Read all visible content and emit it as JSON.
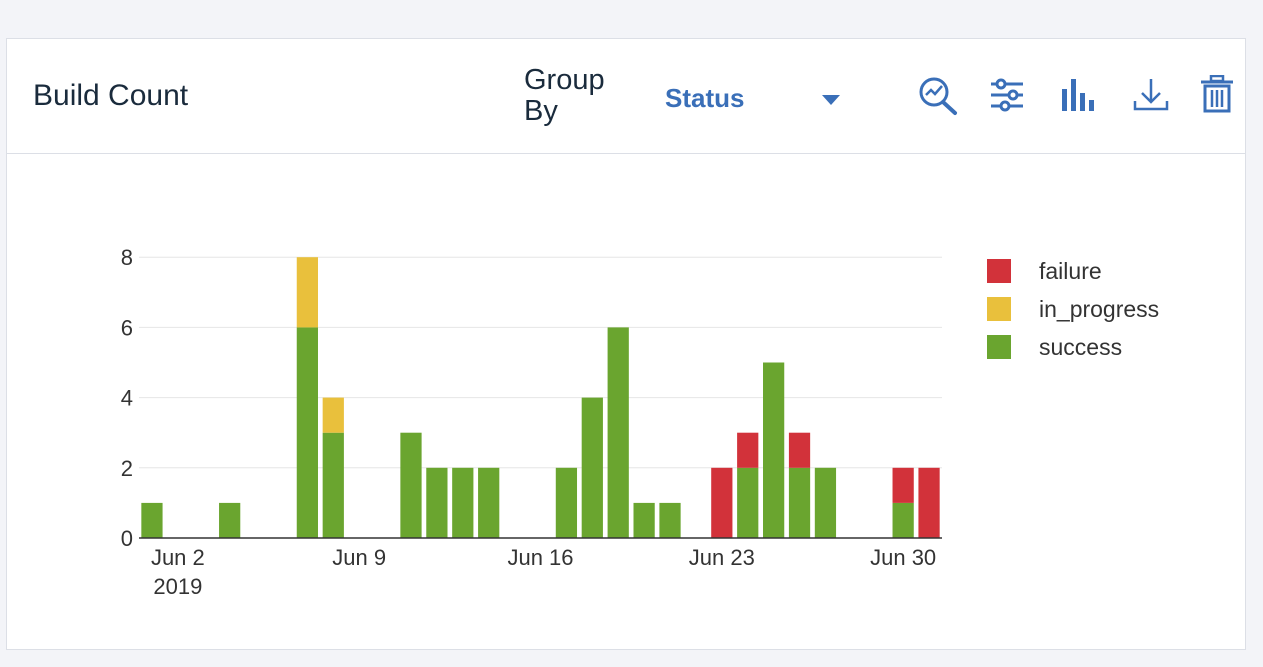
{
  "card": {
    "title": "Build Count",
    "group_by_label": "Group By",
    "group_by_value": "Status"
  },
  "toolbar": {
    "icons": [
      "zoom-chart-icon",
      "sliders-icon",
      "bar-chart-icon",
      "download-icon",
      "trash-icon"
    ]
  },
  "colors": {
    "failure": "#d2323a",
    "in_progress": "#e9c03c",
    "success": "#6aa52f",
    "accent": "#3a6fb8"
  },
  "chart_data": {
    "type": "bar",
    "stacked": true,
    "title": "",
    "xlabel": "",
    "ylabel": "",
    "ylim": [
      0,
      8.6
    ],
    "y_ticks": [
      0,
      2,
      4,
      6,
      8
    ],
    "x_tick_labels": [
      {
        "date": "2019-06-02",
        "label": "Jun 2",
        "sub": "2019"
      },
      {
        "date": "2019-06-09",
        "label": "Jun 9"
      },
      {
        "date": "2019-06-16",
        "label": "Jun 16"
      },
      {
        "date": "2019-06-23",
        "label": "Jun 23"
      },
      {
        "date": "2019-06-30",
        "label": "Jun 30"
      }
    ],
    "grid": true,
    "legend_position": "right",
    "categories": [
      "2019-06-01",
      "2019-06-02",
      "2019-06-03",
      "2019-06-04",
      "2019-06-05",
      "2019-06-06",
      "2019-06-07",
      "2019-06-08",
      "2019-06-09",
      "2019-06-10",
      "2019-06-11",
      "2019-06-12",
      "2019-06-13",
      "2019-06-14",
      "2019-06-15",
      "2019-06-16",
      "2019-06-17",
      "2019-06-18",
      "2019-06-19",
      "2019-06-20",
      "2019-06-21",
      "2019-06-22",
      "2019-06-23",
      "2019-06-24",
      "2019-06-25",
      "2019-06-26",
      "2019-06-27",
      "2019-06-28",
      "2019-06-29",
      "2019-06-30",
      "2019-07-01"
    ],
    "series": [
      {
        "name": "success",
        "color_key": "success",
        "values": [
          1,
          0,
          0,
          1,
          0,
          0,
          6,
          3,
          0,
          0,
          3,
          2,
          2,
          2,
          0,
          0,
          2,
          4,
          6,
          1,
          1,
          0,
          0,
          2,
          5,
          2,
          2,
          0,
          0,
          1,
          0
        ]
      },
      {
        "name": "in_progress",
        "color_key": "in_progress",
        "values": [
          0,
          0,
          0,
          0,
          0,
          0,
          2,
          1,
          0,
          0,
          0,
          0,
          0,
          0,
          0,
          0,
          0,
          0,
          0,
          0,
          0,
          0,
          0,
          0,
          0,
          0,
          0,
          0,
          0,
          0,
          0
        ]
      },
      {
        "name": "failure",
        "color_key": "failure",
        "values": [
          0,
          0,
          0,
          0,
          0,
          0,
          0,
          0,
          0,
          0,
          0,
          0,
          0,
          0,
          0,
          0,
          0,
          0,
          0,
          0,
          0,
          0,
          2,
          1,
          0,
          1,
          0,
          0,
          0,
          1,
          2
        ]
      }
    ],
    "legend_order": [
      "failure",
      "in_progress",
      "success"
    ]
  }
}
